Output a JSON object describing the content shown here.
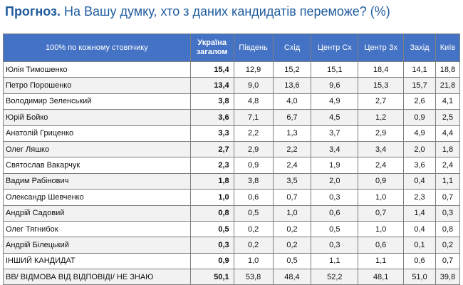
{
  "title_bold": "Прогноз.",
  "title_rest": " На Вашу думку, хто з даних кандидатів переможе? (%)",
  "header": {
    "first": "100% по кожному стовпчику",
    "total_line1": "Україна",
    "total_line2": "загалом",
    "regions": [
      "Південь",
      "Схід",
      "Центр Сх",
      "Центр Зх",
      "Захід",
      "Київ"
    ]
  },
  "rows": [
    {
      "name": "Юлія Тимошенко",
      "total": "15,4",
      "values": [
        "12,9",
        "15,2",
        "15,1",
        "18,4",
        "14,1",
        "18,8"
      ]
    },
    {
      "name": "Петро Порошенко",
      "total": "13,4",
      "values": [
        "9,0",
        "13,6",
        "9,6",
        "15,3",
        "15,7",
        "21,8"
      ]
    },
    {
      "name": "Володимир Зеленський",
      "total": "3,8",
      "values": [
        "4,8",
        "4,0",
        "4,9",
        "2,7",
        "2,6",
        "4,1"
      ]
    },
    {
      "name": "Юрій Бойко",
      "total": "3,6",
      "values": [
        "7,1",
        "6,7",
        "4,5",
        "1,2",
        "0,9",
        "2,5"
      ]
    },
    {
      "name": "Анатолій Гриценко",
      "total": "3,3",
      "values": [
        "2,2",
        "1,3",
        "3,7",
        "2,9",
        "4,9",
        "4,4"
      ]
    },
    {
      "name": "Олег Ляшко",
      "total": "2,7",
      "values": [
        "2,9",
        "2,2",
        "3,4",
        "3,4",
        "2,0",
        "1,8"
      ]
    },
    {
      "name": "Святослав Вакарчук",
      "total": "2,3",
      "values": [
        "0,9",
        "2,4",
        "1,9",
        "2,4",
        "3,6",
        "2,4"
      ]
    },
    {
      "name": "Вадим Рабінович",
      "total": "1,8",
      "values": [
        "3,8",
        "3,5",
        "2,0",
        "0,9",
        "0,4",
        "1,1"
      ]
    },
    {
      "name": "Олександр Шевченко",
      "total": "1,0",
      "values": [
        "0,6",
        "0,7",
        "0,3",
        "1,0",
        "2,3",
        "0,7"
      ]
    },
    {
      "name": "Андрій Садовий",
      "total": "0,8",
      "values": [
        "0,5",
        "1,0",
        "0,6",
        "0,7",
        "1,4",
        "0,3"
      ]
    },
    {
      "name": "Олег Тягнибок",
      "total": "0,5",
      "values": [
        "0,2",
        "0,2",
        "0,5",
        "1,0",
        "0,4",
        "0,8"
      ]
    },
    {
      "name": "Андрій Білецький",
      "total": "0,3",
      "values": [
        "0,2",
        "0,2",
        "0,3",
        "0,6",
        "0,1",
        "0,2"
      ]
    },
    {
      "name": "ІНШИЙ КАНДИДАТ",
      "total": "0,9",
      "values": [
        "1,0",
        "0,5",
        "1,1",
        "1,1",
        "0,6",
        "0,7"
      ]
    },
    {
      "name": "ВВ/ ВІДМОВА ВІД ВІДПОВІДІ/ НЕ ЗНАЮ",
      "total": "50,1",
      "values": [
        "53,8",
        "48,4",
        "52,2",
        "48,1",
        "51,0",
        "39,8"
      ]
    }
  ],
  "colors": {
    "header_bg": "#4472c4",
    "title": "#1f5c9e",
    "stripe": "#f2f2f2"
  }
}
